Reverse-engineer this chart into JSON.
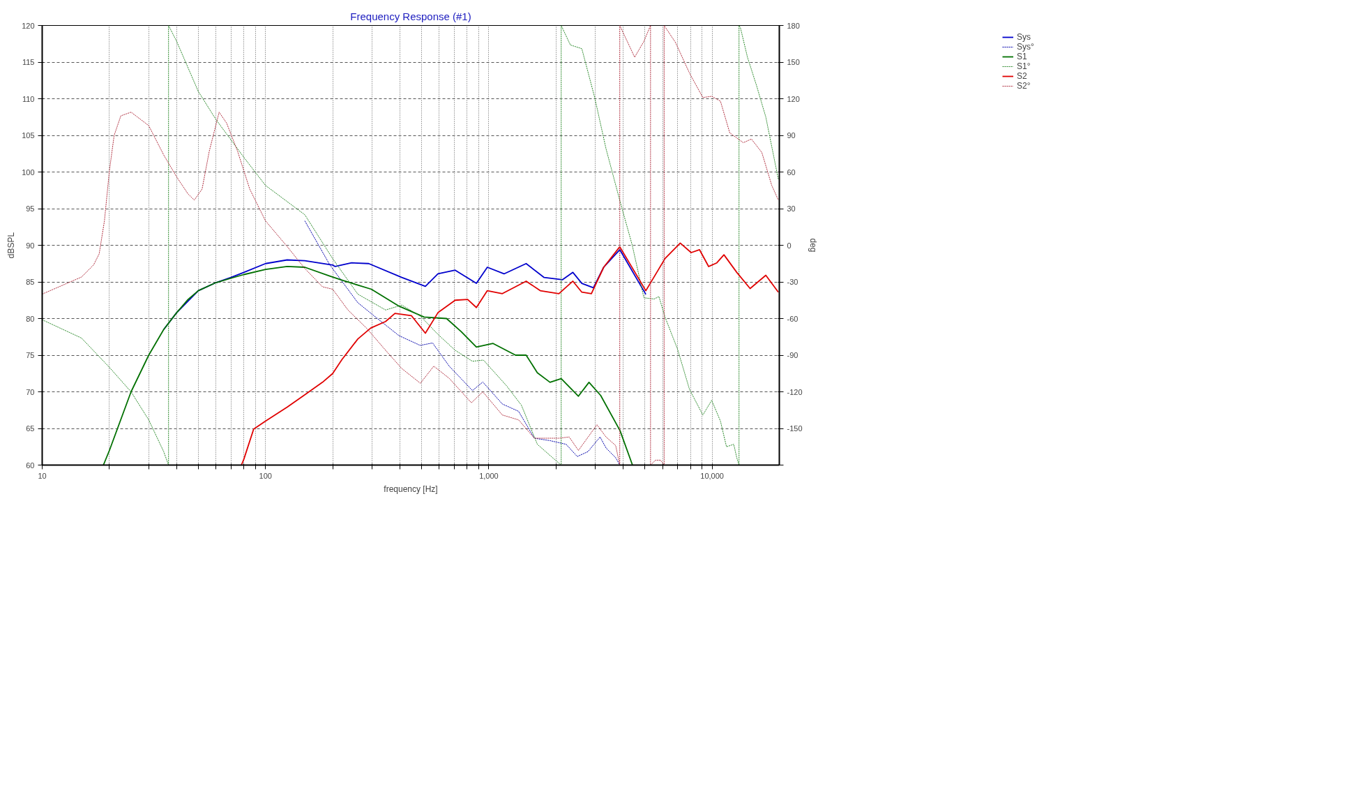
{
  "chart_data": {
    "type": "line",
    "title": "Frequency Response (#1)",
    "xlabel": "frequency [Hz]",
    "ylabel": "dBSPL",
    "y2label": "deg",
    "log": "x",
    "grid": true,
    "legend": "top right",
    "marker": "none",
    "xlim": [
      10,
      20000
    ],
    "xticks": [
      10,
      {
        "value": 20,
        "label": null
      },
      {
        "value": 30,
        "label": null
      },
      {
        "value": 40,
        "label": null
      },
      {
        "value": 50,
        "label": null
      },
      {
        "value": 60,
        "label": null
      },
      {
        "value": 70,
        "label": null
      },
      {
        "value": 80,
        "label": null
      },
      {
        "value": 90,
        "label": null
      },
      100,
      {
        "value": 200,
        "label": null
      },
      {
        "value": 300,
        "label": null
      },
      {
        "value": 400,
        "label": null
      },
      {
        "value": 500,
        "label": null
      },
      {
        "value": 600,
        "label": null
      },
      {
        "value": 700,
        "label": null
      },
      {
        "value": 800,
        "label": null
      },
      {
        "value": 900,
        "label": null
      },
      {
        "value": 1000,
        "label": "1,000"
      },
      {
        "value": 2000,
        "label": null
      },
      {
        "value": 3000,
        "label": null
      },
      {
        "value": 4000,
        "label": null
      },
      {
        "value": 5000,
        "label": null
      },
      {
        "value": 6000,
        "label": null
      },
      {
        "value": 7000,
        "label": null
      },
      {
        "value": 8000,
        "label": null
      },
      {
        "value": 9000,
        "label": null
      },
      {
        "value": 10000,
        "label": "10,000"
      }
    ],
    "ylim": [
      60,
      120
    ],
    "yticks": [
      60,
      65,
      70,
      75,
      80,
      85,
      90,
      95,
      100,
      105,
      110,
      115,
      120
    ],
    "y2lim": [
      -180,
      180
    ],
    "y2ticks": [
      {
        "value": -180,
        "label": null
      },
      -150,
      -120,
      -90,
      -60,
      -30,
      0,
      30,
      60,
      90,
      120,
      150,
      180
    ],
    "series": [
      {
        "name": "Sys",
        "color": "#0000cc",
        "line_style": "solid",
        "x": [
          35,
          40,
          50,
          60,
          70,
          80,
          100,
          125,
          150,
          200,
          205,
          243,
          290,
          408,
          520,
          592,
          707,
          880,
          985,
          1170,
          1470,
          1770,
          2140,
          2380,
          2610,
          2940,
          3270,
          3860,
          5050
        ],
        "values": [
          78.5,
          80.8,
          83.8,
          84.9,
          85.6,
          86.3,
          87.5,
          88.0,
          87.9,
          87.3,
          87.1,
          87.6,
          87.5,
          85.6,
          84.4,
          86.1,
          86.6,
          84.8,
          87.0,
          86.1,
          87.5,
          85.6,
          85.3,
          86.3,
          84.8,
          84.2,
          87.0,
          89.4,
          83.3
        ]
      },
      {
        "name": "Sys°",
        "color": "#0000aa",
        "line_style": "dashed",
        "axis": "y2",
        "x": [
          150,
          194,
          259,
          317,
          396,
          493,
          560,
          665,
          845,
          940,
          1150,
          1360,
          1600,
          1880,
          2220,
          2490,
          2780,
          3150,
          3350,
          3700,
          3860
        ],
        "values": [
          20,
          -16,
          -47,
          -60,
          -74,
          -82,
          -80,
          -99,
          -119,
          -112,
          -130,
          -136,
          -158,
          -160,
          -163,
          -173,
          -169,
          -157,
          -166,
          -174,
          -180
        ]
      },
      {
        "name": "S1",
        "color": "#007000",
        "line_style": "solid",
        "x": [
          18.8,
          20,
          25,
          30,
          35,
          40,
          45,
          50,
          60,
          70,
          80,
          100,
          125,
          150,
          194,
          222,
          298,
          396,
          513,
          647,
          753,
          880,
          1045,
          1318,
          1470,
          1650,
          1880,
          2110,
          2520,
          2810,
          3170,
          3870,
          4400
        ],
        "values": [
          60,
          62,
          70,
          75,
          78.5,
          80.8,
          82.6,
          83.8,
          84.9,
          85.5,
          86.0,
          86.7,
          87.1,
          87.0,
          85.8,
          85.2,
          84.0,
          81.7,
          80.2,
          80.0,
          78.2,
          76.1,
          76.6,
          75.0,
          75.0,
          72.6,
          71.3,
          71.8,
          69.4,
          71.3,
          69.5,
          64.7,
          60
        ]
      },
      {
        "name": "S1°",
        "color": "#2e8b2e",
        "line_style": "dashed",
        "axis": "y2",
        "x": [
          10,
          15,
          20,
          25,
          30,
          35,
          36.8,
          36.8,
          40,
          50,
          60,
          80,
          100,
          150,
          200,
          259,
          345,
          408,
          494,
          592,
          707,
          845,
          946,
          1200,
          1400,
          1650,
          1960,
          2110,
          2110,
          2320,
          2610,
          2980,
          3350,
          3870,
          4390,
          4950,
          5500,
          5780,
          6160,
          7000,
          7920,
          9090,
          9960,
          10900,
          11600,
          12500,
          12900,
          13200,
          13200,
          13400,
          14400,
          15800,
          17400,
          19800
        ],
        "values": [
          -61,
          -76,
          -100,
          -120,
          -143,
          -169,
          -180,
          180,
          167,
          126,
          103,
          72,
          49,
          25,
          -11,
          -40,
          -53,
          -49,
          -58,
          -73,
          -86,
          -95,
          -94,
          -115,
          -131,
          -163,
          -175,
          -180,
          180,
          164,
          161,
          121,
          79,
          36,
          0,
          -43,
          -44,
          -42,
          -59,
          -85,
          -118,
          -139,
          -127,
          -144,
          -165,
          -163,
          -174,
          -180,
          180,
          178,
          154,
          131,
          105,
          54
        ]
      },
      {
        "name": "S2",
        "color": "#e00000",
        "line_style": "solid",
        "x": [
          78,
          80,
          88.5,
          100,
          125,
          150,
          180,
          200,
          220,
          259,
          296,
          345,
          380,
          450,
          520,
          592,
          707,
          804,
          880,
          985,
          1150,
          1470,
          1700,
          2060,
          2380,
          2610,
          2880,
          3270,
          3860,
          5050,
          6160,
          7200,
          8060,
          8780,
          9650,
          10500,
          11300,
          12900,
          14800,
          17400,
          19800
        ],
        "values": [
          60,
          60.8,
          64.9,
          66.0,
          67.9,
          69.6,
          71.3,
          72.5,
          74.4,
          77.2,
          78.7,
          79.6,
          80.7,
          80.4,
          78.0,
          80.8,
          82.5,
          82.6,
          81.5,
          83.8,
          83.4,
          85.1,
          83.8,
          83.4,
          85.1,
          83.6,
          83.4,
          87.0,
          89.8,
          83.8,
          88.2,
          90.3,
          89.0,
          89.4,
          87.1,
          87.6,
          88.7,
          86.3,
          84.1,
          85.9,
          83.6
        ]
      },
      {
        "name": "S2°",
        "color": "#b03040",
        "line_style": "dashed",
        "axis": "y2",
        "x": [
          10,
          15,
          17,
          18,
          19,
          20,
          21,
          22.5,
          25,
          30,
          35,
          40,
          45,
          48,
          52,
          56,
          62,
          67,
          75,
          85,
          100,
          125,
          150,
          180,
          200,
          234,
          284,
          345,
          408,
          494,
          567,
          665,
          836,
          940,
          1150,
          1360,
          1600,
          2060,
          2290,
          2520,
          3050,
          3350,
          3700,
          3860,
          3860,
          4500,
          4950,
          5300,
          5300,
          5580,
          5880,
          6100,
          6100,
          6860,
          7920,
          9090,
          9960,
          10900,
          12000,
          13800,
          15000,
          16700,
          18500,
          19800
        ],
        "values": [
          -40,
          -26,
          -16,
          -7,
          20,
          61,
          90,
          106,
          109,
          98,
          74,
          56,
          42,
          37,
          46,
          77,
          109,
          100,
          77,
          46,
          20,
          -1,
          -19,
          -34,
          -36,
          -53,
          -68,
          -86,
          -101,
          -113,
          -99,
          -109,
          -129,
          -120,
          -139,
          -143,
          -158,
          -158,
          -157,
          -168,
          -147,
          -157,
          -164,
          -180,
          180,
          154,
          167,
          180,
          -180,
          -176,
          -176,
          -180,
          180,
          166,
          141,
          121,
          122,
          118,
          92,
          84,
          87,
          76,
          49,
          37
        ]
      }
    ]
  }
}
